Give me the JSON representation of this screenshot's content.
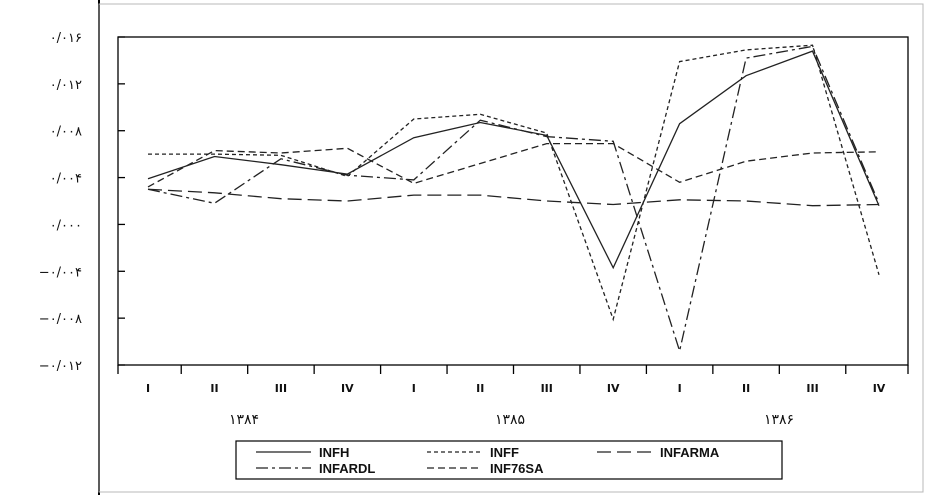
{
  "chart_data": {
    "type": "line",
    "title": "",
    "xlabel": "",
    "ylabel": "",
    "x": [
      "I",
      "II",
      "III",
      "IV",
      "I",
      "II",
      "III",
      "IV",
      "I",
      "II",
      "III",
      "IV"
    ],
    "years": [
      "۱۳۸۴",
      "۱۳۸۵",
      "۱۳۸۶"
    ],
    "ylim": [
      -0.012,
      0.016
    ],
    "yticks": [
      0.016,
      0.012,
      0.008,
      0.004,
      0.0,
      -0.004,
      -0.008,
      -0.012
    ],
    "ytick_labels": [
      "۰/۰۱۶",
      "۰/۰۱۲",
      "۰/۰۰۸",
      "۰/۰۰۴",
      "۰/۰۰۰",
      "−۰/۰۰۴",
      "−۰/۰۰۸",
      "−۰/۰۱۲"
    ],
    "grid": false,
    "legend_position": "bottom",
    "series": [
      {
        "name": "INFH",
        "style": "solid",
        "values": [
          0.0039,
          0.0058,
          0.0051,
          0.0043,
          0.0074,
          0.0087,
          0.0076,
          -0.0037,
          0.0086,
          0.0127,
          0.0148,
          0.0016
        ]
      },
      {
        "name": "INFF",
        "style": "dotted",
        "values": [
          0.006,
          0.006,
          0.0059,
          0.0041,
          0.009,
          0.0094,
          0.0078,
          -0.0081,
          0.0139,
          0.0149,
          0.0153,
          -0.0043
        ]
      },
      {
        "name": "INFARMA",
        "style": "longdash",
        "values": [
          0.003,
          0.0027,
          0.0022,
          0.002,
          0.0025,
          0.0025,
          0.002,
          0.0017,
          0.0021,
          0.002,
          0.0016,
          0.0017
        ]
      },
      {
        "name": "INFARDL",
        "style": "dashdot",
        "values": [
          0.003,
          0.0018,
          0.0056,
          0.0042,
          0.0038,
          0.0089,
          0.0075,
          0.0071,
          -0.0108,
          0.0142,
          0.0152,
          0.0018
        ]
      },
      {
        "name": "INF76SA",
        "style": "shortdash",
        "values": [
          0.0032,
          0.0063,
          0.0061,
          0.0065,
          0.0035,
          0.0052,
          0.0069,
          0.0069,
          0.0036,
          0.0054,
          0.0061,
          0.0062
        ]
      }
    ]
  }
}
